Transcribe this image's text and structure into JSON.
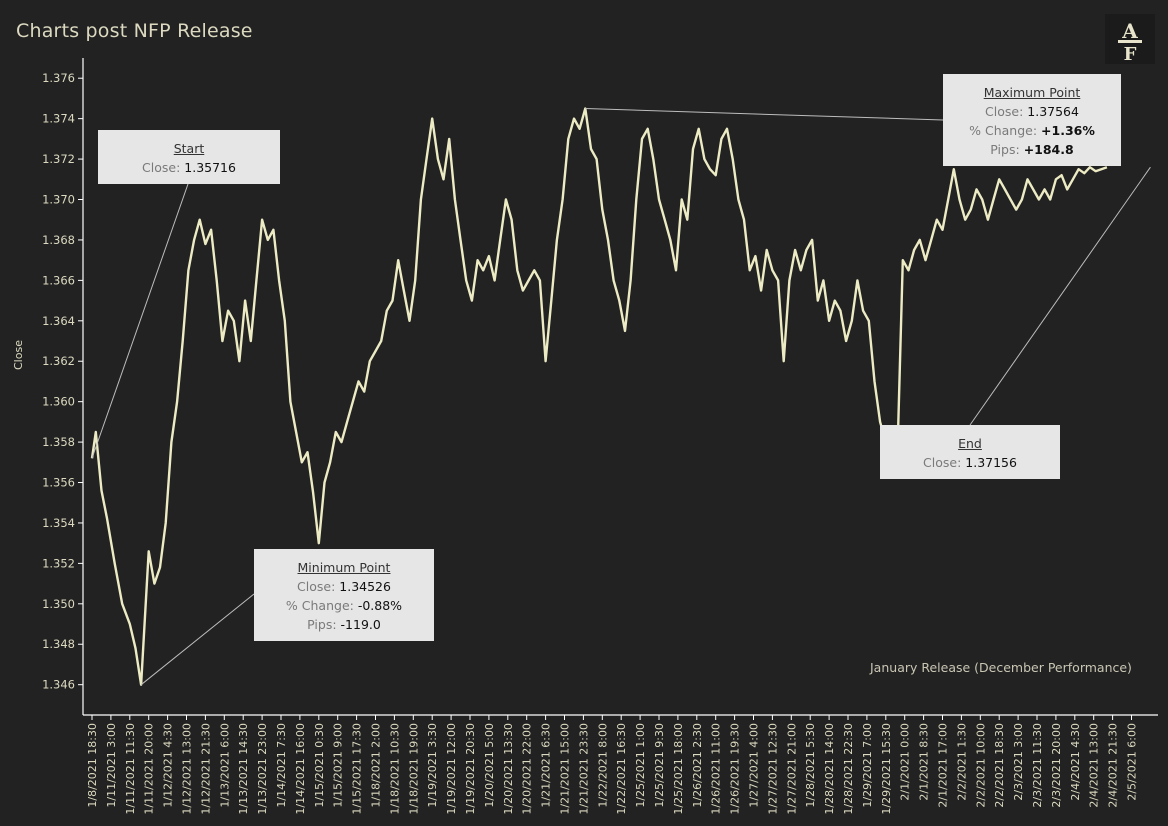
{
  "title": "Charts post NFP Release",
  "footnote": "January Release (December Performance)",
  "logo": {
    "letters": "AF"
  },
  "colors": {
    "background": "#222222",
    "line": "#ecebc4",
    "axis": "#ffffff",
    "text": "#dcd9c0",
    "annotation_bg": "#e6e6e6"
  },
  "annotations": {
    "start": {
      "heading": "Start",
      "close_label": "Close:",
      "close_value": "1.35716"
    },
    "minimum": {
      "heading": "Minimum Point",
      "close_label": "Close:",
      "close_value": "1.34526",
      "change_label": "% Change:",
      "change_value": "-0.88%",
      "pips_label": "Pips:",
      "pips_value": "-119.0"
    },
    "maximum": {
      "heading": "Maximum Point",
      "close_label": "Close:",
      "close_value": "1.37564",
      "change_label": "% Change:",
      "change_value": "+1.36%",
      "pips_label": "Pips:",
      "pips_value": "+184.8"
    },
    "end": {
      "heading": "End",
      "close_label": "Close:",
      "close_value": "1.37156"
    }
  },
  "chart_data": {
    "type": "line",
    "title": "Charts post NFP Release",
    "ylabel": "Close",
    "xlabel": "",
    "ylim": [
      1.3445,
      1.377
    ],
    "yticks": [
      1.346,
      1.348,
      1.35,
      1.352,
      1.354,
      1.356,
      1.358,
      1.36,
      1.362,
      1.364,
      1.366,
      1.368,
      1.37,
      1.372,
      1.374,
      1.376
    ],
    "x_tick_labels": [
      "1/8/2021 18:30",
      "1/11/2021 3:00",
      "1/11/2021 11:30",
      "1/11/2021 20:00",
      "1/12/2021 4:30",
      "1/12/2021 13:00",
      "1/12/2021 21:30",
      "1/13/2021 6:00",
      "1/13/2021 14:30",
      "1/13/2021 23:00",
      "1/14/2021 7:30",
      "1/14/2021 16:00",
      "1/15/2021 0:30",
      "1/15/2021 9:00",
      "1/15/2021 17:30",
      "1/18/2021 2:00",
      "1/18/2021 10:30",
      "1/18/2021 19:00",
      "1/19/2021 3:30",
      "1/19/2021 12:00",
      "1/19/2021 20:30",
      "1/20/2021 5:00",
      "1/20/2021 13:30",
      "1/20/2021 22:00",
      "1/21/2021 6:30",
      "1/21/2021 15:00",
      "1/21/2021 23:30",
      "1/22/2021 8:00",
      "1/22/2021 16:30",
      "1/25/2021 1:00",
      "1/25/2021 9:30",
      "1/25/2021 18:00",
      "1/26/2021 2:30",
      "1/26/2021 11:00",
      "1/26/2021 19:30",
      "1/27/2021 4:00",
      "1/27/2021 12:30",
      "1/27/2021 21:00",
      "1/28/2021 5:30",
      "1/28/2021 14:00",
      "1/28/2021 22:30",
      "1/29/2021 7:00",
      "1/29/2021 15:30",
      "2/1/2021 0:00",
      "2/1/2021 8:30",
      "2/1/2021 17:00",
      "2/2/2021 1:30",
      "2/2/2021 10:00",
      "2/2/2021 18:30",
      "2/3/2021 3:00",
      "2/3/2021 11:30",
      "2/3/2021 20:00",
      "2/4/2021 4:30",
      "2/4/2021 13:00",
      "2/4/2021 21:30",
      "2/5/2021 6:00"
    ],
    "series": [
      {
        "name": "",
        "x_tick_index": [
          0,
          0.2,
          0.5,
          0.8,
          1.2,
          1.6,
          2,
          2.3,
          2.6,
          3,
          3.3,
          3.6,
          3.9,
          4.2,
          4.5,
          4.8,
          5.1,
          5.4,
          5.7,
          6,
          6.3,
          6.6,
          6.9,
          7.2,
          7.5,
          7.8,
          8.1,
          8.4,
          8.7,
          9,
          9.3,
          9.6,
          9.9,
          10.2,
          10.5,
          10.8,
          11.1,
          11.4,
          11.7,
          12,
          12.3,
          12.6,
          12.9,
          13.2,
          13.5,
          13.8,
          14.1,
          14.4,
          14.7,
          15,
          15.3,
          15.6,
          15.9,
          16.2,
          16.5,
          16.8,
          17.1,
          17.4,
          17.7,
          18,
          18.3,
          18.6,
          18.9,
          19.2,
          19.5,
          19.8,
          20.1,
          20.4,
          20.7,
          21,
          21.3,
          21.6,
          21.9,
          22.2,
          22.5,
          22.8,
          23.1,
          23.4,
          23.7,
          24,
          24.3,
          24.6,
          24.9,
          25.2,
          25.5,
          25.8,
          26.1,
          26.4,
          26.7,
          27,
          27.3,
          27.6,
          27.9,
          28.2,
          28.5,
          28.8,
          29.1,
          29.4,
          29.7,
          30,
          30.3,
          30.6,
          30.9,
          31.2,
          31.5,
          31.8,
          32.1,
          32.4,
          32.7,
          33,
          33.3,
          33.6,
          33.9,
          34.2,
          34.5,
          34.8,
          35.1,
          35.4,
          35.7,
          36,
          36.3,
          36.6,
          36.9,
          37.2,
          37.5,
          37.8,
          38.1,
          38.4,
          38.7,
          39,
          39.3,
          39.6,
          39.9,
          40.2,
          40.5,
          40.8,
          41.1,
          41.4,
          41.7,
          42,
          42.3,
          42.6,
          42.9,
          43.2,
          43.5,
          43.8,
          44.1,
          44.4,
          44.7,
          45,
          45.3,
          45.6,
          45.9,
          46.2,
          46.5,
          46.8,
          47.1,
          47.4,
          47.7,
          48,
          48.3,
          48.6,
          48.9,
          49.2,
          49.5,
          49.8,
          50.1,
          50.4,
          50.7,
          51,
          51.3,
          51.6,
          51.9,
          52.2,
          52.5,
          52.8,
          53.1,
          53.4,
          53.7,
          54,
          54.3,
          54.6,
          54.9,
          55.2,
          55.5,
          55.8,
          56
        ],
        "values": [
          1.3572,
          1.3585,
          1.3556,
          1.3542,
          1.352,
          1.35,
          1.349,
          1.3478,
          1.346,
          1.3526,
          1.351,
          1.3518,
          1.354,
          1.358,
          1.36,
          1.363,
          1.3665,
          1.368,
          1.369,
          1.3678,
          1.3685,
          1.366,
          1.363,
          1.3645,
          1.364,
          1.362,
          1.365,
          1.363,
          1.366,
          1.369,
          1.368,
          1.3685,
          1.366,
          1.364,
          1.36,
          1.3585,
          1.357,
          1.3575,
          1.3555,
          1.353,
          1.356,
          1.357,
          1.3585,
          1.358,
          1.359,
          1.36,
          1.361,
          1.3605,
          1.362,
          1.3625,
          1.363,
          1.3645,
          1.365,
          1.367,
          1.3655,
          1.364,
          1.366,
          1.37,
          1.372,
          1.374,
          1.372,
          1.371,
          1.373,
          1.37,
          1.368,
          1.366,
          1.365,
          1.367,
          1.3665,
          1.3672,
          1.366,
          1.368,
          1.37,
          1.369,
          1.3665,
          1.3655,
          1.366,
          1.3665,
          1.366,
          1.362,
          1.365,
          1.368,
          1.37,
          1.373,
          1.374,
          1.3735,
          1.3745,
          1.3725,
          1.372,
          1.3695,
          1.368,
          1.366,
          1.365,
          1.3635,
          1.366,
          1.37,
          1.373,
          1.3735,
          1.372,
          1.37,
          1.369,
          1.368,
          1.3665,
          1.37,
          1.369,
          1.3725,
          1.3735,
          1.372,
          1.3715,
          1.3712,
          1.373,
          1.3735,
          1.372,
          1.37,
          1.369,
          1.3665,
          1.3672,
          1.3655,
          1.3675,
          1.3665,
          1.366,
          1.362,
          1.366,
          1.3675,
          1.3665,
          1.3675,
          1.368,
          1.365,
          1.366,
          1.364,
          1.365,
          1.3645,
          1.363,
          1.364,
          1.366,
          1.3645,
          1.364,
          1.361,
          1.359,
          1.358,
          1.3575,
          1.3568,
          1.367,
          1.3665,
          1.3675,
          1.368,
          1.367,
          1.368,
          1.369,
          1.3685,
          1.37,
          1.3715,
          1.37,
          1.369,
          1.3695,
          1.3705,
          1.37,
          1.369,
          1.37,
          1.371,
          1.3705,
          1.37,
          1.3695,
          1.37,
          1.371,
          1.3705,
          1.37,
          1.3705,
          1.37,
          1.371,
          1.3712,
          1.3705,
          1.371,
          1.3715,
          1.3713,
          1.3716,
          1.3714,
          1.3715,
          1.3716
        ]
      }
    ],
    "grid": false
  }
}
